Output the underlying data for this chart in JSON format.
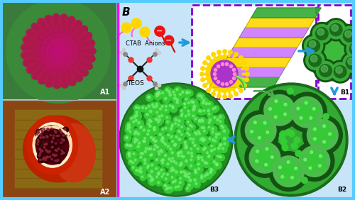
{
  "fig_width": 5.0,
  "fig_height": 2.82,
  "dpi": 100,
  "bg_color": "#aaddff",
  "outer_border_color": "#55ccff",
  "outer_border_lw": 3,
  "divider_color": "#FF00FF",
  "label_A1": "A1",
  "label_A2": "A2",
  "label_B": "B",
  "label_B1": "B1",
  "label_B2": "B2",
  "label_B3": "B3",
  "ctab_label": "CTAB  Anions",
  "teos_label": "TEOS",
  "arrow_color": "#2299dd",
  "dashed_box_color": "#8800cc",
  "green_dark": "#1a6b1a",
  "green_mid": "#2db52d",
  "green_light": "#5cd65c",
  "green_sphere": "#33cc33",
  "yellow_ctab": "#FFD700",
  "magenta_tail": "#FF69B4",
  "red_anion": "#EE1111",
  "purple_micelle": "#aa33cc",
  "bilayer_colors": [
    "#33aa33",
    "#cc88ff",
    "#FFD700",
    "#cc88ff",
    "#FFD700",
    "#cc88ff",
    "#FFD700",
    "#33aa33"
  ]
}
